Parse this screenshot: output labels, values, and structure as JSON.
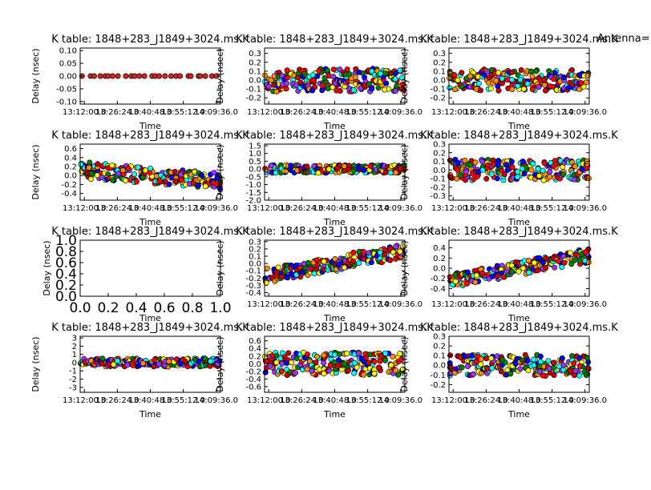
{
  "figure": {
    "title_right": "Antenna="
  },
  "chart_data": [
    {
      "type": "scatter",
      "title": "K table: 1848+283_J1849+3024.ms.K",
      "xlabel": "Time",
      "ylabel": "Delay (nsec)",
      "ylim": [
        -0.11,
        0.11
      ],
      "yticks": [
        "-0.10",
        "-0.05",
        "0.00",
        "0.05",
        "0.10"
      ],
      "ytick_vals": [
        -0.1,
        -0.05,
        0,
        0.05,
        0.1
      ],
      "xticks": [
        "13:12:00.0",
        "13:26:24.0",
        "13:40:48.0",
        "13:55:12.0",
        "14:09:36.0"
      ],
      "pattern": "flat",
      "spread": 0.0
    },
    {
      "type": "scatter",
      "title": "K table: 1848+283_J1849+3024.ms.K",
      "xlabel": "Time",
      "ylabel": "Delay (nsec)",
      "ylim": [
        -0.27,
        0.36
      ],
      "yticks": [
        "-0.2",
        "-0.1",
        "0.0",
        "0.1",
        "0.2",
        "0.3"
      ],
      "ytick_vals": [
        -0.2,
        -0.1,
        0,
        0.1,
        0.2,
        0.3
      ],
      "xticks": [
        "13:12:00.0",
        "13:26:24.0",
        "13:40:48.0",
        "13:55:12.0",
        "14:09:36.0"
      ],
      "pattern": "uniform",
      "spread": 0.13
    },
    {
      "type": "scatter",
      "title": "K table: 1848+283_J1849+3024.ms.K",
      "xlabel": "Time",
      "ylabel": "Delay (nsec)",
      "ylim": [
        -0.27,
        0.36
      ],
      "yticks": [
        "-0.2",
        "-0.1",
        "0.0",
        "0.1",
        "0.2",
        "0.3"
      ],
      "ytick_vals": [
        -0.2,
        -0.1,
        0,
        0.1,
        0.2,
        0.3
      ],
      "xticks": [
        "13:12:00.0",
        "13:26:24.0",
        "13:40:48.0",
        "13:55:12.0",
        "14:09:36.0"
      ],
      "pattern": "uniform",
      "spread": 0.12
    },
    {
      "type": "scatter",
      "title": "K table: 1848+283_J1849+3024.ms.K",
      "xlabel": "Time",
      "ylabel": "Delay (nsec)",
      "ylim": [
        -0.55,
        0.7
      ],
      "yticks": [
        "-0.4",
        "-0.2",
        "0.0",
        "0.2",
        "0.4",
        "0.6"
      ],
      "ytick_vals": [
        -0.4,
        -0.2,
        0,
        0.2,
        0.4,
        0.6
      ],
      "xticks": [
        "13:12:00.0",
        "13:26:24.0",
        "13:40:48.0",
        "13:55:12.0",
        "14:09:36.0"
      ],
      "pattern": "decline",
      "spread": 0.18
    },
    {
      "type": "scatter",
      "title": "K table: 1848+283_J1849+3024.ms.K",
      "xlabel": "Time",
      "ylabel": "Delay (nsec)",
      "ylim": [
        -2.0,
        1.6
      ],
      "yticks": [
        "-2.0",
        "-1.5",
        "-1.0",
        "-0.5",
        "0.0",
        "0.5",
        "1.0",
        "1.5"
      ],
      "ytick_vals": [
        -2,
        -1.5,
        -1,
        -0.5,
        0,
        0.5,
        1,
        1.5
      ],
      "xticks": [
        "13:12:00.0",
        "13:26:24.0",
        "13:40:48.0",
        "13:55:12.0",
        "14:09:36.0"
      ],
      "pattern": "flat",
      "spread": 0.25
    },
    {
      "type": "scatter",
      "title": "K table: 1848+283_J1849+3024.ms.K",
      "xlabel": "Time",
      "ylabel": "Delay (nsec)",
      "ylim": [
        -0.35,
        0.3
      ],
      "yticks": [
        "-0.3",
        "-0.2",
        "-0.1",
        "0.0",
        "0.1",
        "0.2",
        "0.3"
      ],
      "ytick_vals": [
        -0.3,
        -0.2,
        -0.1,
        0,
        0.1,
        0.2,
        0.3
      ],
      "xticks": [
        "13:12:00.0",
        "13:26:24.0",
        "13:40:48.0",
        "13:55:12.0",
        "14:09:36.0"
      ],
      "pattern": "uniform",
      "spread": 0.12
    },
    {
      "type": "scatter",
      "title": "K table: 1848+283_J1849+3024.ms.K",
      "xlabel": "Time",
      "ylabel": "Delay (nsec)",
      "ylim": [
        0.0,
        1.0
      ],
      "yticks": [
        "0.0",
        "0.2",
        "0.4",
        "0.6",
        "0.8",
        "1.0"
      ],
      "ytick_vals": [
        0,
        0.2,
        0.4,
        0.6,
        0.8,
        1
      ],
      "xlim": [
        0.0,
        1.0
      ],
      "xticks": [
        "0.0",
        "0.2",
        "0.4",
        "0.6",
        "0.8",
        "1.0"
      ],
      "pattern": "empty",
      "spread": 0
    },
    {
      "type": "scatter",
      "title": "K table: 1848+283_J1849+3024.ms.K",
      "xlabel": "Time",
      "ylabel": "Delay (nsec)",
      "ylim": [
        -0.45,
        0.32
      ],
      "yticks": [
        "-0.4",
        "-0.3",
        "-0.2",
        "-0.1",
        "0.0",
        "0.1",
        "0.2",
        "0.3"
      ],
      "ytick_vals": [
        -0.4,
        -0.3,
        -0.2,
        -0.1,
        0,
        0.1,
        0.2,
        0.3
      ],
      "xticks": [
        "13:12:00.0",
        "13:26:24.0",
        "13:40:48.0",
        "13:55:12.0",
        "14:09:36.0"
      ],
      "pattern": "rise",
      "spread": 0.1
    },
    {
      "type": "scatter",
      "title": "K table: 1848+283_J1849+3024.ms.K",
      "xlabel": "Time",
      "ylabel": "Delay (nsec)",
      "ylim": [
        -0.55,
        0.55
      ],
      "yticks": [
        "-0.4",
        "-0.2",
        "0.0",
        "0.2",
        "0.4"
      ],
      "ytick_vals": [
        -0.4,
        -0.2,
        0,
        0.2,
        0.4
      ],
      "xticks": [
        "13:12:00.0",
        "13:26:24.0",
        "13:40:48.0",
        "13:55:12.0",
        "14:09:36.0"
      ],
      "pattern": "rise",
      "spread": 0.14
    },
    {
      "type": "scatter",
      "title": "K table: 1848+283_J1849+3024.ms.K",
      "xlabel": "Time",
      "ylabel": "Delay (nsec)",
      "ylim": [
        -3.6,
        3.2
      ],
      "yticks": [
        "-3",
        "-2",
        "-1",
        "0",
        "1",
        "2",
        "3"
      ],
      "ytick_vals": [
        -3,
        -2,
        -1,
        0,
        1,
        2,
        3
      ],
      "xticks": [
        "13:12:00.0",
        "13:26:24.0",
        "13:40:48.0",
        "13:55:12.0",
        "14:09:36.0"
      ],
      "pattern": "flat",
      "spread": 0.5
    },
    {
      "type": "scatter",
      "title": "K table: 1848+283_J1849+3024.ms.K",
      "xlabel": "Time",
      "ylabel": "Delay (nsec)",
      "ylim": [
        -0.75,
        0.72
      ],
      "yticks": [
        "-0.6",
        "-0.4",
        "-0.2",
        "0.0",
        "0.2",
        "0.4",
        "0.6"
      ],
      "ytick_vals": [
        -0.6,
        -0.4,
        -0.2,
        0,
        0.2,
        0.4,
        0.6
      ],
      "xticks": [
        "13:12:00.0",
        "13:26:24.0",
        "13:40:48.0",
        "13:55:12.0",
        "14:09:36.0"
      ],
      "pattern": "uniform",
      "spread": 0.3
    },
    {
      "type": "scatter",
      "title": "K table: 1848+283_J1849+3024.ms.K",
      "xlabel": "Time",
      "ylabel": "Delay (nsec)",
      "ylim": [
        -0.28,
        0.3
      ],
      "yticks": [
        "-0.2",
        "-0.1",
        "0.0",
        "0.1",
        "0.2",
        "0.3"
      ],
      "ytick_vals": [
        -0.2,
        -0.1,
        0,
        0.1,
        0.2,
        0.3
      ],
      "xticks": [
        "13:12:00.0",
        "13:26:24.0",
        "13:40:48.0",
        "13:55:12.0",
        "14:09:36.0"
      ],
      "pattern": "uniform",
      "spread": 0.11
    }
  ],
  "colors": [
    "#ff0000",
    "#ffff00",
    "#00ffff",
    "#9933ff",
    "#ff8c00",
    "#008000",
    "#0000ff",
    "#cc0000"
  ]
}
